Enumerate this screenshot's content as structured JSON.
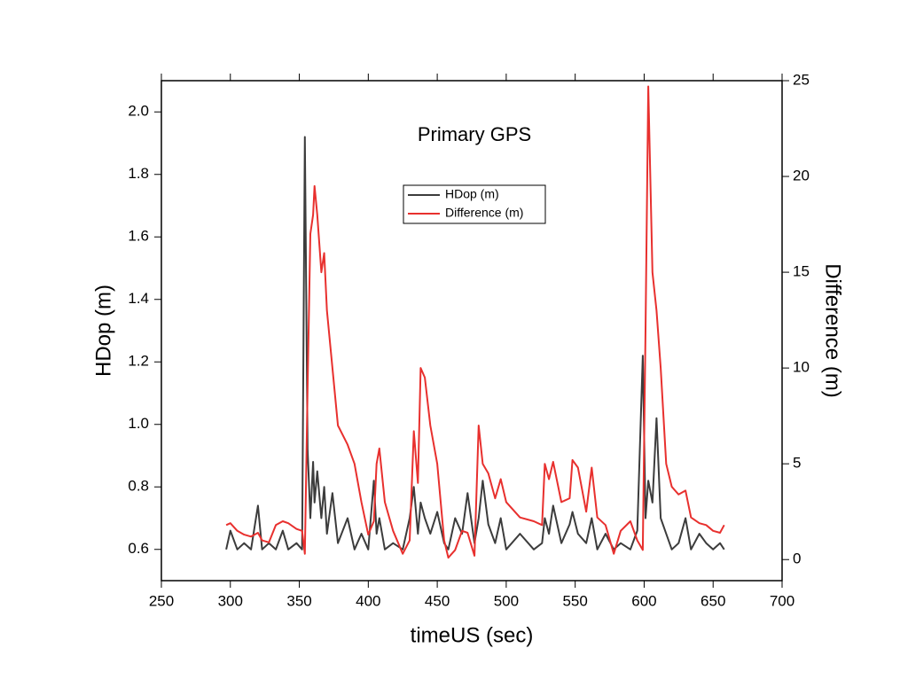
{
  "chart_data": {
    "type": "line",
    "title": "Primary GPS",
    "x_label": "timeUS (sec)",
    "y_label": "HDop (m)",
    "y2_label": "Difference (m)",
    "xlim": [
      250,
      700
    ],
    "xticks": [
      250,
      300,
      350,
      400,
      450,
      500,
      550,
      600,
      650,
      700
    ],
    "ylim": [
      0.5,
      2.1
    ],
    "yticks": [
      {
        "value": 0.6,
        "label": "0.6"
      },
      {
        "value": 0.8,
        "label": "0.8"
      },
      {
        "value": 1.0,
        "label": "1.0"
      },
      {
        "value": 1.2,
        "label": "1.2"
      },
      {
        "value": 1.4,
        "label": "1.4"
      },
      {
        "value": 1.6,
        "label": "1.6"
      },
      {
        "value": 1.8,
        "label": "1.8"
      },
      {
        "value": 2.0,
        "label": "2.0"
      }
    ],
    "y2lim": [
      -1.1,
      25
    ],
    "y2ticks": [
      0,
      5,
      10,
      15,
      20,
      25
    ],
    "legend": "upper center",
    "x": [
      297,
      300,
      305,
      310,
      315,
      320,
      323,
      328,
      333,
      338,
      342,
      348,
      352,
      354,
      356,
      358,
      360,
      361,
      363,
      366,
      368,
      370,
      374,
      378,
      385,
      390,
      395,
      400,
      404,
      406,
      408,
      412,
      418,
      425,
      430,
      433,
      436,
      438,
      441,
      445,
      450,
      455,
      458,
      463,
      468,
      472,
      477,
      480,
      483,
      487,
      492,
      496,
      500,
      510,
      520,
      526,
      528,
      531,
      534,
      540,
      546,
      548,
      552,
      558,
      562,
      566,
      572,
      578,
      583,
      590,
      595,
      599,
      601,
      603,
      606,
      609,
      612,
      616,
      620,
      625,
      630,
      634,
      640,
      645,
      650,
      655,
      658
    ],
    "series": [
      {
        "name": "HDop (m)",
        "color": "#3c3c3c",
        "values": [
          0.6,
          0.66,
          0.6,
          0.62,
          0.6,
          0.74,
          0.6,
          0.62,
          0.6,
          0.66,
          0.6,
          0.62,
          0.6,
          1.92,
          0.92,
          0.7,
          0.88,
          0.75,
          0.85,
          0.7,
          0.8,
          0.65,
          0.78,
          0.62,
          0.7,
          0.6,
          0.65,
          0.6,
          0.82,
          0.65,
          0.7,
          0.6,
          0.62,
          0.6,
          0.7,
          0.8,
          0.65,
          0.75,
          0.7,
          0.65,
          0.72,
          0.62,
          0.6,
          0.7,
          0.65,
          0.78,
          0.62,
          0.7,
          0.82,
          0.68,
          0.62,
          0.7,
          0.6,
          0.65,
          0.6,
          0.62,
          0.7,
          0.65,
          0.74,
          0.62,
          0.68,
          0.72,
          0.65,
          0.62,
          0.7,
          0.6,
          0.65,
          0.6,
          0.62,
          0.6,
          0.66,
          1.22,
          0.7,
          0.82,
          0.75,
          1.02,
          0.7,
          0.65,
          0.6,
          0.62,
          0.7,
          0.6,
          0.65,
          0.62,
          0.6,
          0.62,
          0.6
        ]
      },
      {
        "name": "Difference (m)",
        "color": "#e8302e",
        "axis": "y2",
        "values": [
          1.8,
          1.9,
          1.5,
          1.3,
          1.2,
          1.4,
          1.0,
          0.9,
          1.8,
          2.0,
          1.9,
          1.6,
          1.5,
          0.3,
          9,
          17,
          18,
          19.5,
          18,
          15,
          16,
          13,
          10,
          7,
          6,
          5,
          3,
          1.3,
          2,
          5,
          5.8,
          3,
          1.5,
          0.3,
          1.0,
          6.7,
          4,
          10,
          9.5,
          7,
          5,
          1.0,
          0.1,
          0.5,
          1.5,
          1.4,
          0.2,
          7,
          5,
          4.5,
          3.2,
          4.2,
          3.0,
          2.2,
          2.0,
          1.8,
          5,
          4.2,
          5.1,
          3.0,
          3.2,
          5.2,
          4.8,
          2.5,
          4.8,
          2.2,
          1.8,
          0.3,
          1.5,
          2.0,
          1.0,
          0.5,
          12,
          24.7,
          15,
          13,
          10,
          5,
          3.8,
          3.4,
          3.6,
          2.2,
          1.9,
          1.8,
          1.5,
          1.4,
          1.8
        ]
      }
    ]
  }
}
